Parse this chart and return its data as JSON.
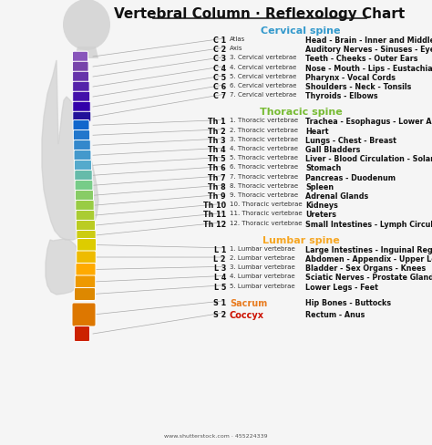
{
  "title": "Vertebral Column · Reflexology Chart",
  "bg_color": "#f5f5f5",
  "sections": [
    {
      "name": "Cervical spine",
      "name_color": "#3399cc",
      "rows": [
        [
          "C 1",
          "Atlas",
          "Head - Brain - Inner and Middle Ears"
        ],
        [
          "C 2",
          "Axis",
          "Auditory Nerves - Sinuses - Eyes - Tongue"
        ],
        [
          "C 3",
          "3. Cervical vertebrae",
          "Teeth - Cheeks - Outer Ears"
        ],
        [
          "C 4",
          "4. Cervical vertebrae",
          "Nose - Mouth - Lips - Eustachian Tubes"
        ],
        [
          "C 5",
          "5. Cervical vertebrae",
          "Pharynx - Vocal Cords"
        ],
        [
          "C 6",
          "6. Cervical vertebrae",
          "Shoulders - Neck - Tonsils"
        ],
        [
          "C 7",
          "7. Cervical vertebrae",
          "Thyroids - Elbows"
        ]
      ]
    },
    {
      "name": "Thoracic spine",
      "name_color": "#77bb33",
      "rows": [
        [
          "Th 1",
          "1. Thoracic vertebrae",
          "Trachea - Esophagus - Lower Arms - Fingers"
        ],
        [
          "Th 2",
          "2. Thoracic vertebrae",
          "Heart"
        ],
        [
          "Th 3",
          "3. Thoracic vertebrae",
          "Lungs - Chest - Breast"
        ],
        [
          "Th 4",
          "4. Thoracic vertebrae",
          "Gall Bladders"
        ],
        [
          "Th 5",
          "5. Thoracic vertebrae",
          "Liver - Blood Circulation - Solar Plexus"
        ],
        [
          "Th 6",
          "6. Thoracic vertebrae",
          "Stomach"
        ],
        [
          "Th 7",
          "7. Thoracic vertebrae",
          "Pancreas - Duodenum"
        ],
        [
          "Th 8",
          "8. Thoracic vertebrae",
          "Spleen"
        ],
        [
          "Th 9",
          "9. Thoracic vertebrae",
          "Adrenal Glands"
        ],
        [
          "Th 10",
          "10. Thoracic vertebrae",
          "Kidneys"
        ],
        [
          "Th 11",
          "11. Thoracic vertebrae",
          "Ureters"
        ],
        [
          "Th 12",
          "12. Thoracic vertebrae",
          "Small Intestines - Lymph Circulation"
        ]
      ]
    },
    {
      "name": "Lumbar spine",
      "name_color": "#f5a623",
      "rows": [
        [
          "L 1",
          "1. Lumbar vertebrae",
          "Large Intestines - Inguinal Region"
        ],
        [
          "L 2",
          "2. Lumbar vertebrae",
          "Abdomen - Appendix - Upper Legs"
        ],
        [
          "L 3",
          "3. Lumbar vertebrae",
          "Bladder - Sex Organs - Knees"
        ],
        [
          "L 4",
          "4. Lumbar vertebrae",
          "Sciatic Nerves - Prostate Gland"
        ],
        [
          "L 5",
          "5. Lumbar vertebrae",
          "Lower Legs - Feet"
        ]
      ]
    }
  ],
  "special_rows": [
    [
      "S 1",
      "Sacrum",
      "#e87c20",
      "Hip Bones - Buttocks"
    ],
    [
      "S 2",
      "Coccyx",
      "#cc1100",
      "Rectum - Anus"
    ]
  ],
  "cervical_colors": [
    "#8855bb",
    "#7744aa",
    "#6633aa",
    "#5522aa",
    "#4411aa",
    "#3300aa",
    "#221199"
  ],
  "thoracic_colors": [
    "#1166cc",
    "#2277cc",
    "#3388cc",
    "#4499cc",
    "#55aacc",
    "#66bbaa",
    "#77cc88",
    "#88cc66",
    "#99cc44",
    "#aacc33",
    "#bbcc22",
    "#cccc11"
  ],
  "lumbar_colors": [
    "#ddcc00",
    "#eebb00",
    "#ffaa00",
    "#ee9900",
    "#dd8800"
  ],
  "sacrum_color": "#dd7700",
  "coccyx_color": "#cc2200",
  "silhouette_color": "#d0d0d0",
  "line_color": "#aaaaaa",
  "watermark": "www.shutterstock.com · 455224339"
}
